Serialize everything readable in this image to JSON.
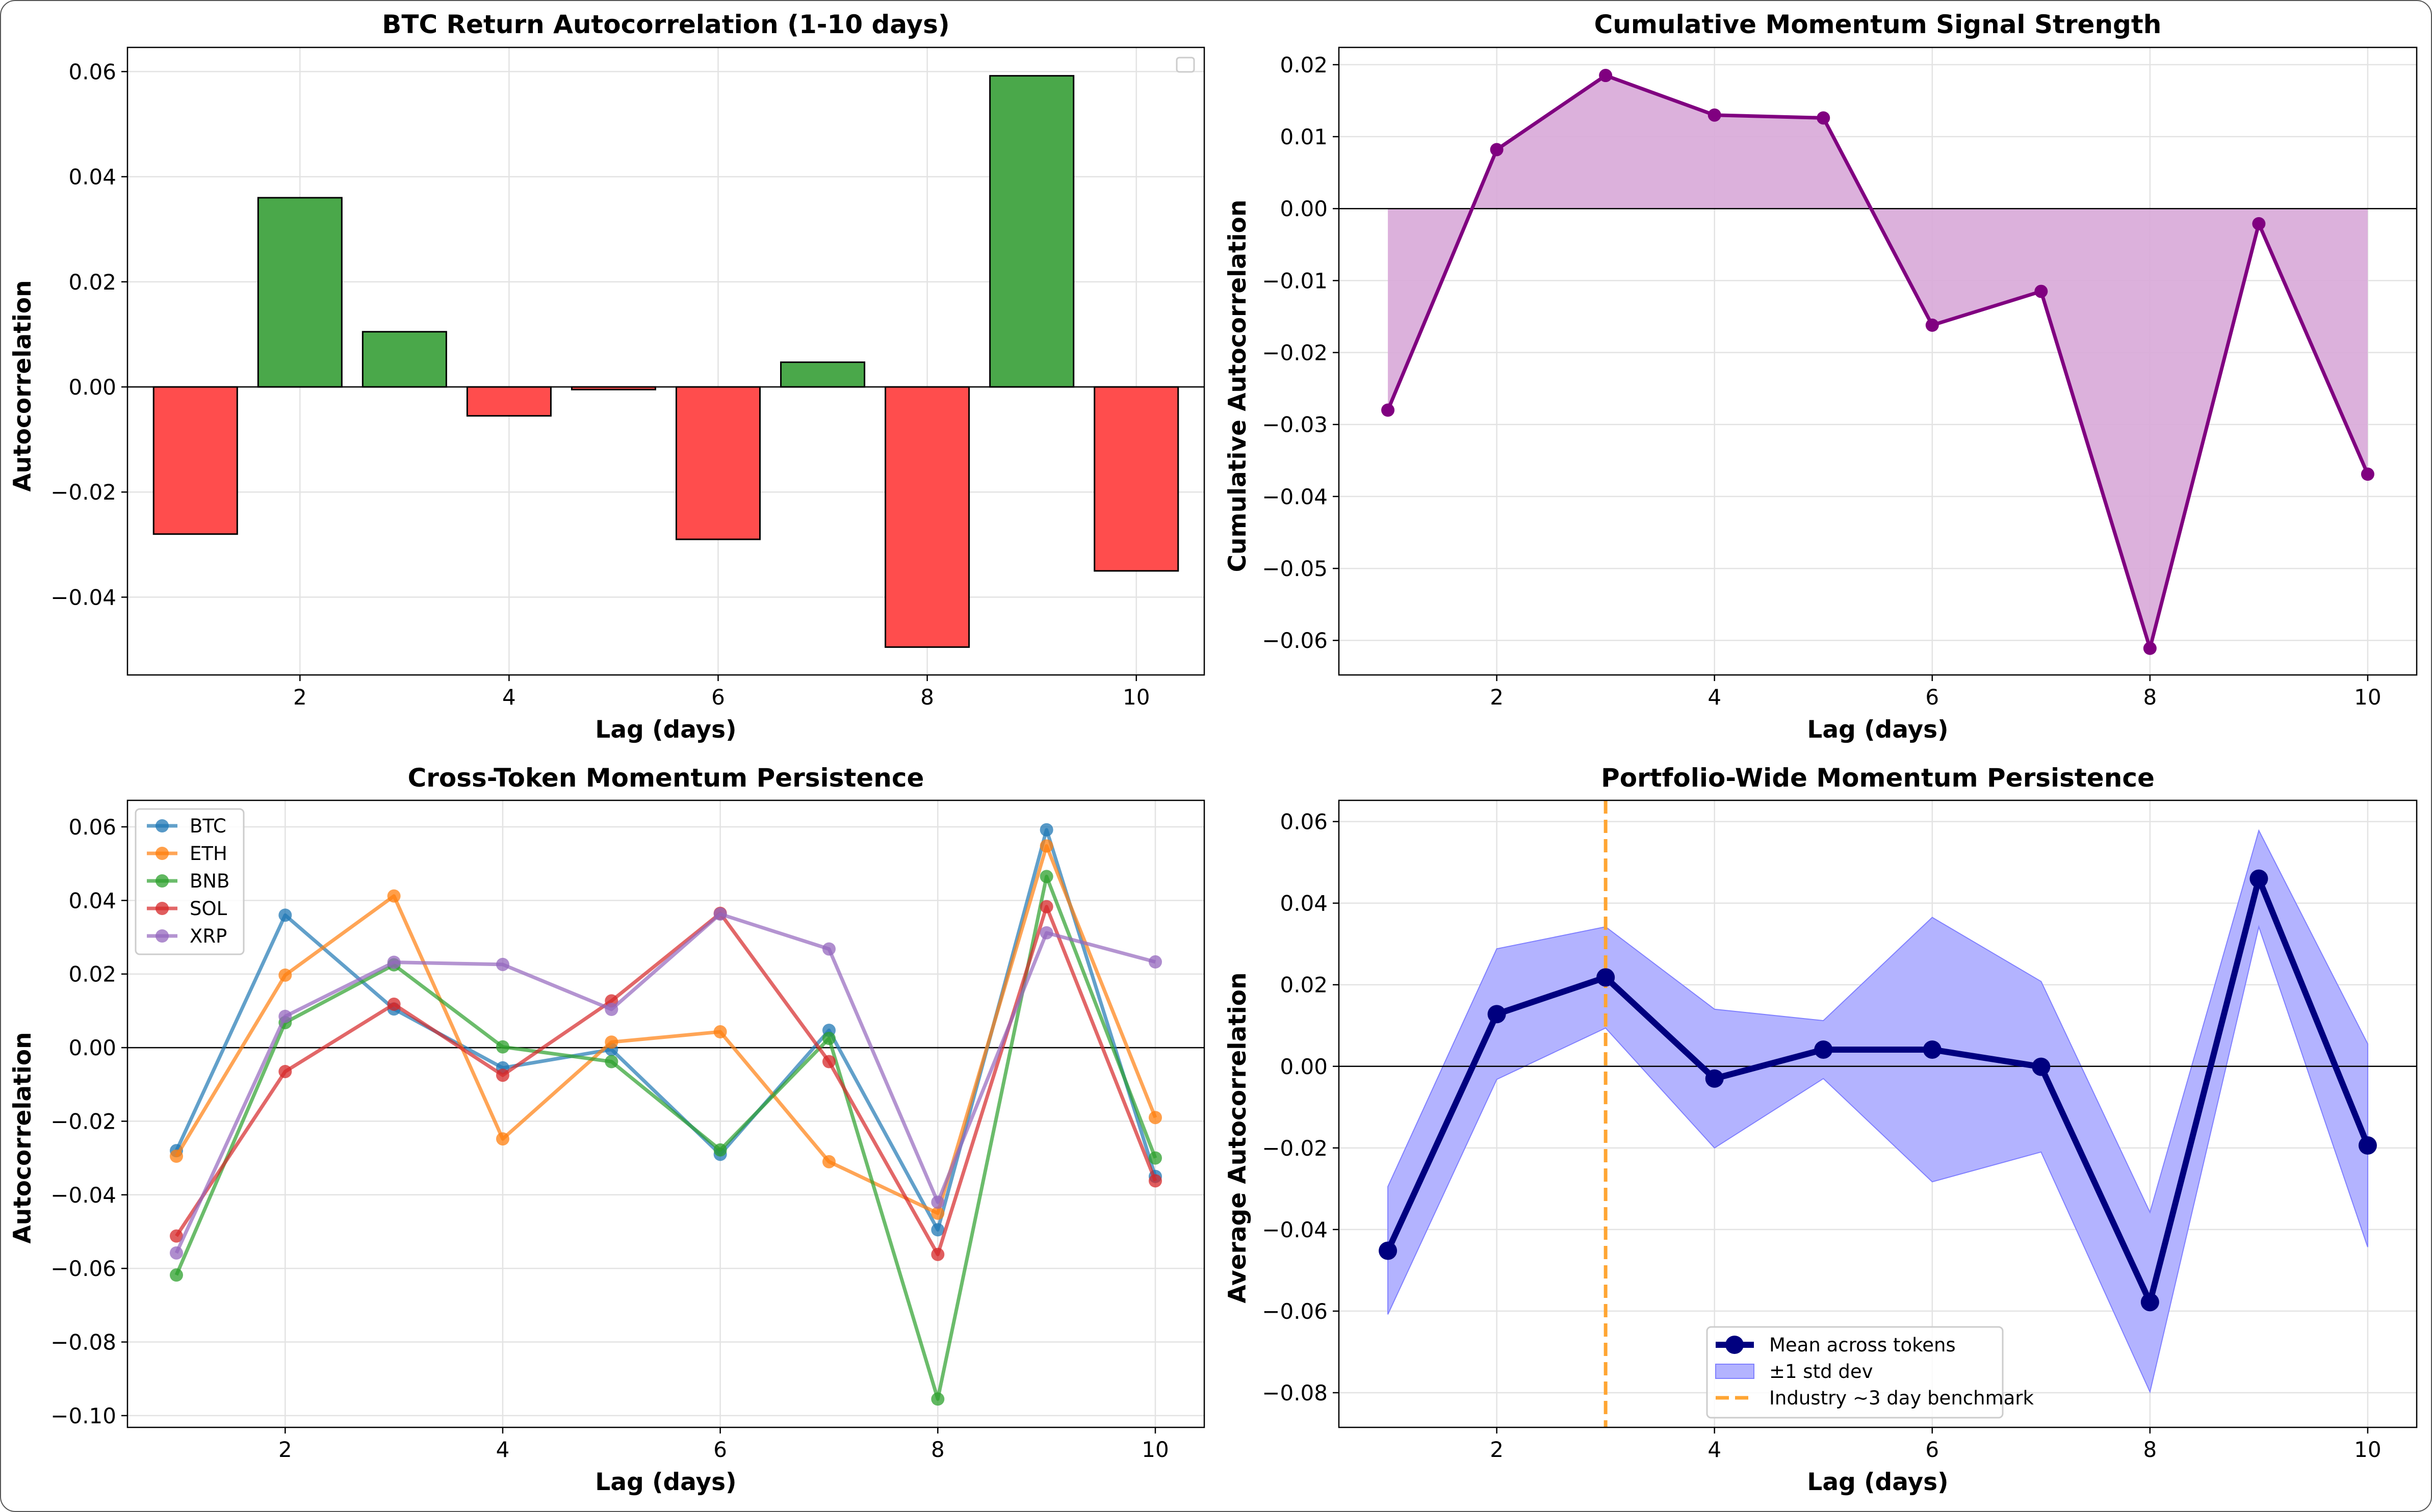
{
  "chart_data": [
    {
      "type": "bar",
      "id": "p1",
      "title": "BTC Return Autocorrelation (1-10 days)",
      "xlabel": "Lag (days)",
      "ylabel": "Autocorrelation",
      "x": [
        1,
        2,
        3,
        4,
        5,
        6,
        7,
        8,
        9,
        10
      ],
      "values": [
        -0.028,
        0.036,
        0.0105,
        -0.0055,
        -0.0005,
        -0.029,
        0.0047,
        -0.0495,
        0.0592,
        -0.035
      ],
      "xlim": [
        0.35,
        10.65
      ],
      "ylim": [
        -0.0548,
        0.0646
      ],
      "xticks": [
        2,
        4,
        6,
        8,
        10
      ],
      "yticks": [
        -0.04,
        -0.02,
        0.0,
        0.02,
        0.04,
        0.06
      ],
      "ytick_labels": [
        "−0.04",
        "−0.02",
        "0.00",
        "0.02",
        "0.04",
        "0.06"
      ],
      "legend": "top-right (empty)",
      "colors": {
        "positive": "#4aa84a",
        "negative": "#ff4d4d",
        "edge": "#000000"
      }
    },
    {
      "type": "area",
      "id": "p2",
      "title": "Cumulative Momentum Signal Strength",
      "xlabel": "Lag (days)",
      "ylabel": "Cumulative Autocorrelation",
      "x": [
        1,
        2,
        3,
        4,
        5,
        6,
        7,
        8,
        9,
        10
      ],
      "values": [
        -0.028,
        0.0082,
        0.0185,
        0.013,
        0.0126,
        -0.0162,
        -0.0115,
        -0.0611,
        -0.0021,
        -0.0369
      ],
      "xlim": [
        0.55,
        10.45
      ],
      "ylim": [
        -0.0648,
        0.0224
      ],
      "xticks": [
        2,
        4,
        6,
        8,
        10
      ],
      "yticks": [
        -0.06,
        -0.05,
        -0.04,
        -0.03,
        -0.02,
        -0.01,
        0.0,
        0.01,
        0.02
      ],
      "ytick_labels": [
        "−0.06",
        "−0.05",
        "−0.04",
        "−0.03",
        "−0.02",
        "−0.01",
        "0.00",
        "0.01",
        "0.02"
      ],
      "colors": {
        "line": "#800080",
        "fill": "#d8a9d8"
      }
    },
    {
      "type": "line",
      "id": "p3",
      "title": "Cross-Token Momentum Persistence",
      "xlabel": "Lag (days)",
      "ylabel": "Autocorrelation",
      "x": [
        1,
        2,
        3,
        4,
        5,
        6,
        7,
        8,
        9,
        10
      ],
      "series": [
        {
          "name": "BTC",
          "color": "#1f77b4",
          "values": [
            -0.028,
            0.036,
            0.0105,
            -0.0055,
            -0.0005,
            -0.029,
            0.0047,
            -0.0495,
            0.0592,
            -0.035
          ]
        },
        {
          "name": "ETH",
          "color": "#ff7f0e",
          "values": [
            -0.0295,
            0.0197,
            0.0412,
            -0.0248,
            0.0015,
            0.0043,
            -0.031,
            -0.045,
            0.0548,
            -0.019
          ]
        },
        {
          "name": "BNB",
          "color": "#2ca02c",
          "values": [
            -0.0618,
            0.0068,
            0.0225,
            0.0002,
            -0.0038,
            -0.0278,
            0.0025,
            -0.0955,
            0.0465,
            -0.03
          ]
        },
        {
          "name": "SOL",
          "color": "#d62728",
          "values": [
            -0.0512,
            -0.0065,
            0.0118,
            -0.0075,
            0.0127,
            0.0365,
            -0.0038,
            -0.0562,
            0.0383,
            -0.0362
          ]
        },
        {
          "name": "XRP",
          "color": "#9467bd",
          "values": [
            -0.0558,
            0.0085,
            0.0232,
            0.0226,
            0.0104,
            0.0363,
            0.0268,
            -0.042,
            0.0312,
            0.0233
          ]
        }
      ],
      "xlim": [
        0.55,
        10.45
      ],
      "ylim": [
        -0.1032,
        0.0672
      ],
      "xticks": [
        2,
        4,
        6,
        8,
        10
      ],
      "yticks": [
        -0.1,
        -0.08,
        -0.06,
        -0.04,
        -0.02,
        0.0,
        0.02,
        0.04,
        0.06
      ],
      "ytick_labels": [
        "−0.10",
        "−0.08",
        "−0.06",
        "−0.04",
        "−0.02",
        "0.00",
        "0.02",
        "0.04",
        "0.06"
      ],
      "legend": "top-left"
    },
    {
      "type": "line",
      "id": "p4",
      "title": "Portfolio-Wide Momentum Persistence",
      "xlabel": "Lag (days)",
      "ylabel": "Average Autocorrelation",
      "x": [
        1,
        2,
        3,
        4,
        5,
        6,
        7,
        8,
        9,
        10
      ],
      "mean": [
        -0.0452,
        0.0128,
        0.0218,
        -0.003,
        0.0041,
        0.0041,
        -0.0001,
        -0.0578,
        0.046,
        -0.0194
      ],
      "std_upper": [
        -0.0295,
        0.0288,
        0.0342,
        0.014,
        0.0112,
        0.0365,
        0.0208,
        -0.0358,
        0.0578,
        0.0055
      ],
      "std_lower": [
        -0.0608,
        -0.0032,
        0.0094,
        -0.02,
        -0.003,
        -0.0283,
        -0.021,
        -0.0798,
        0.0342,
        -0.0443
      ],
      "benchmark_x": 3,
      "legend_entries": [
        "Mean across tokens",
        "±1 std dev",
        "Industry ~3 day benchmark"
      ],
      "xlim": [
        0.55,
        10.45
      ],
      "ylim": [
        -0.0885,
        0.0652
      ],
      "xticks": [
        2,
        4,
        6,
        8,
        10
      ],
      "yticks": [
        -0.08,
        -0.06,
        -0.04,
        -0.02,
        0.0,
        0.02,
        0.04,
        0.06
      ],
      "ytick_labels": [
        "−0.08",
        "−0.06",
        "−0.04",
        "−0.02",
        "0.00",
        "0.02",
        "0.04",
        "0.06"
      ],
      "legend": "bottom-center",
      "colors": {
        "mean": "#00007f",
        "band": "#b3b3ff",
        "band_edge": "#8080ff",
        "benchmark": "#ffa533"
      }
    }
  ]
}
